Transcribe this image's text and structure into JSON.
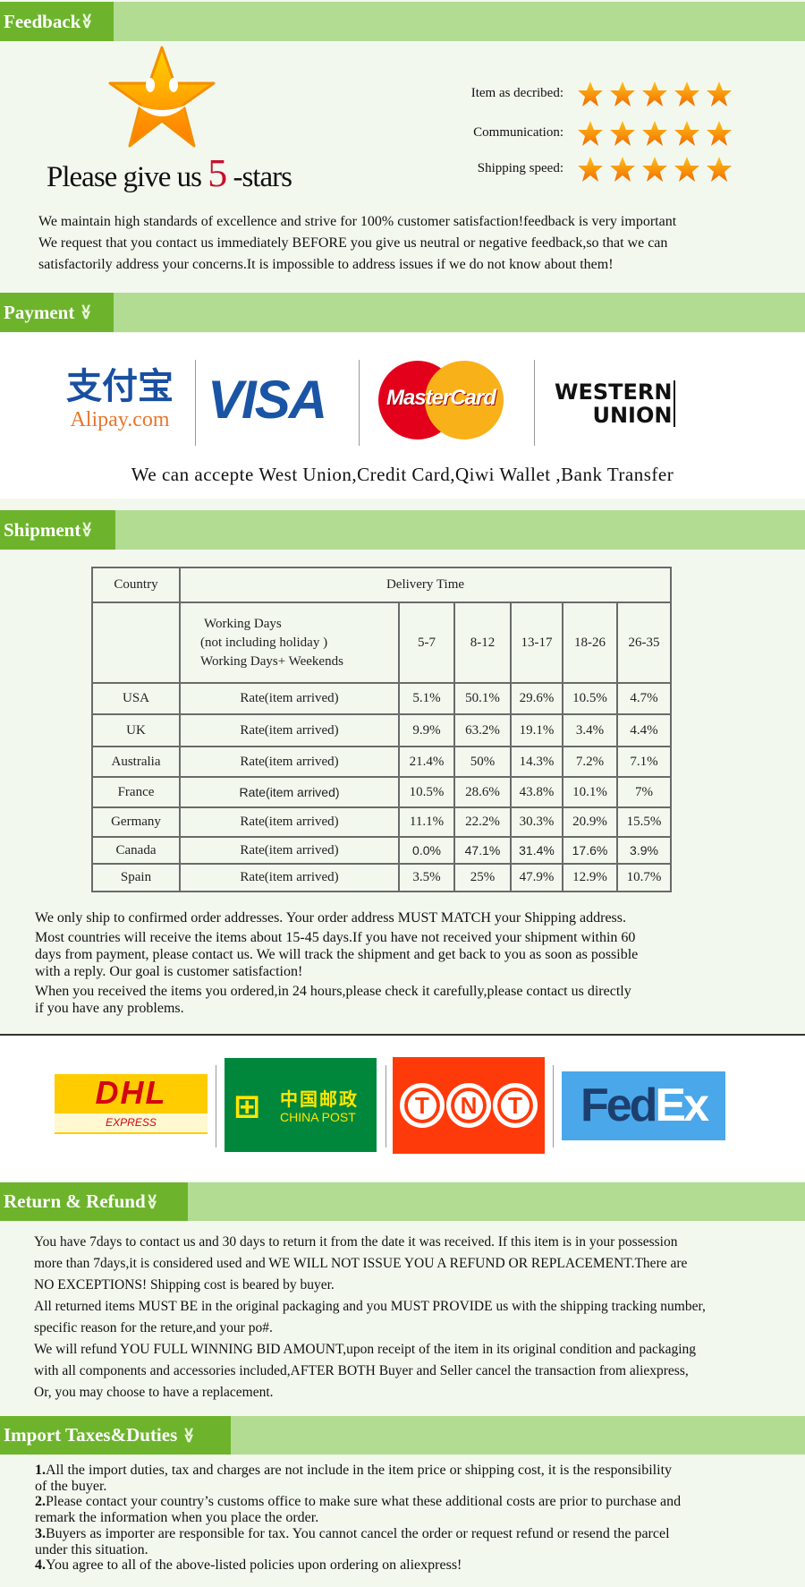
{
  "feedback": {
    "header": "Feedback",
    "please_prefix": "Please give us",
    "please_number": "5",
    "please_suffix": "-stars",
    "ratings": [
      {
        "label": "Item as decribed:",
        "stars": 5
      },
      {
        "label": "Communication:",
        "stars": 5
      },
      {
        "label": "Shipping speed:",
        "stars": 5
      }
    ],
    "paragraph": [
      "We maintain high standards of excellence and strive for 100% customer satisfaction!feedback is very important",
      "We request that you contact us immediately BEFORE you give us neutral or negative feedback,so that we can",
      "satisfactorily address your concerns.It is impossible to address issues if we do not know about them!"
    ]
  },
  "payment": {
    "header": "Payment",
    "logos": {
      "alipay_cn": "支付宝",
      "alipay": "Alipay.com",
      "visa": "VISA",
      "mastercard": "MasterCard",
      "wu1": "WESTERN",
      "wu2": "UNION"
    },
    "accept_text": "We can accepte West Union,Credit Card,Qiwi Wallet ,Bank Transfer"
  },
  "shipment": {
    "header": "Shipment",
    "table": {
      "country_header": "Country",
      "delivery_header": "Delivery Time",
      "wd_lines": [
        "Working Days",
        "(not including holiday )",
        "Working Days+ Weekends"
      ],
      "ranges": [
        "5-7",
        "8-12",
        "13-17",
        "18-26",
        "26-35"
      ],
      "rows": [
        {
          "country": "USA",
          "label": "Rate(item arrived)",
          "values": [
            "5.1%",
            "50.1%",
            "29.6%",
            "10.5%",
            "4.7%"
          ]
        },
        {
          "country": "UK",
          "label": "Rate(item arrived)",
          "values": [
            "9.9%",
            "63.2%",
            "19.1%",
            "3.4%",
            "4.4%"
          ]
        },
        {
          "country": "Australia",
          "label": "Rate(item arrived)",
          "values": [
            "21.4%",
            "50%",
            "14.3%",
            "7.2%",
            "7.1%"
          ]
        },
        {
          "country": "France",
          "label": "Rate(item arrived)",
          "values": [
            "10.5%",
            "28.6%",
            "43.8%",
            "10.1%",
            "7%"
          ]
        },
        {
          "country": "Germany",
          "label": "Rate(item arrived)",
          "values": [
            "11.1%",
            "22.2%",
            "30.3%",
            "20.9%",
            "15.5%"
          ]
        },
        {
          "country": "Canada",
          "label": "Rate(item arrived)",
          "values": [
            "0.0%",
            "47.1%",
            "31.4%",
            "17.6%",
            "3.9%"
          ]
        },
        {
          "country": "Spain",
          "label": "Rate(item arrived)",
          "values": [
            "3.5%",
            "25%",
            "47.9%",
            "12.9%",
            "10.7%"
          ]
        }
      ]
    },
    "notes": [
      "We only ship to confirmed order addresses. Your order address MUST MATCH your Shipping address.",
      "Most countries will receive the items about 15-45 days.If you have not received your shipment within 60",
      "days from payment, please contact us. We will track the shipment and get back to you as soon as possible",
      "with a reply. Our goal is customer satisfaction!",
      "When you received the items you ordered,in 24 hours,please check it carefully,please contact us directly",
      "if you have any problems."
    ],
    "couriers": {
      "dhl": "DHL",
      "dhl_sub": "EXPRESS",
      "cp_cn": "中国邮政",
      "cp": "CHINA POST",
      "tnt": [
        "T",
        "N",
        "T"
      ],
      "fed": "Fed",
      "ex": "Ex"
    }
  },
  "return": {
    "header": "Return & Refund",
    "lines": [
      "You have 7days to contact us and 30 days to return it from the date it was received. If this item is in your possession",
      "more than 7days,it is considered used and WE WILL NOT ISSUE YOU A REFUND OR REPLACEMENT.There are",
      " NO EXCEPTIONS! Shipping cost is beared by buyer.",
      "All returned items MUST BE in the original packaging and you MUST PROVIDE us with the shipping tracking number,",
      "specific reason for the reture,and your po#.",
      "We will refund YOU FULL WINNING BID AMOUNT,upon receipt of the item in its original condition and packaging",
      "with all components and accessories included,AFTER BOTH Buyer and Seller cancel the transaction from aliexpress,",
      "Or, you may choose to have a replacement."
    ]
  },
  "import": {
    "header": "Import Taxes&Duties",
    "items": [
      {
        "num": "1.",
        "lines": [
          "All the import duties, tax and charges are not include in the item price or shipping cost, it is the responsibility",
          "of the buyer."
        ]
      },
      {
        "num": "2.",
        "lines": [
          "Please contact your country’s customs office to make sure what these additional costs are prior to purchase and",
          "remark the information when you place the order."
        ]
      },
      {
        "num": "3.",
        "lines": [
          "Buyers as importer are responsible for tax. You cannot cancel the order or request refund or resend the parcel",
          "under this situation."
        ]
      },
      {
        "num": "4.",
        "lines": [
          "You agree to all of the above-listed policies upon ordering on aliexpress!"
        ]
      }
    ]
  },
  "colors": {
    "header_dark": "#6db42c",
    "header_light": "#b1dc92",
    "star": "#f7931e",
    "accent_red": "#c8102e"
  }
}
